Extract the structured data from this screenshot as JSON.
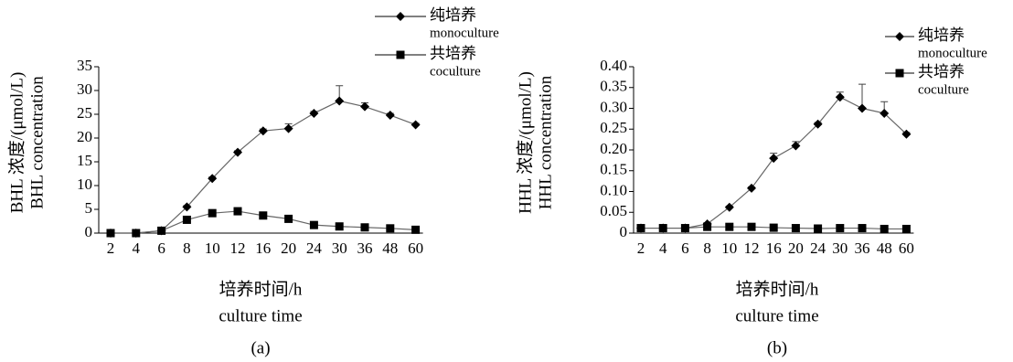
{
  "chart_data": [
    {
      "type": "line",
      "ylabel": [
        "BHL 浓度/(μmol/L)",
        "BHL concentration"
      ],
      "xlabel": [
        "培养时间/h",
        "culture time"
      ],
      "panel": "(a)",
      "categories": [
        "2",
        "4",
        "6",
        "8",
        "10",
        "12",
        "16",
        "20",
        "24",
        "30",
        "36",
        "48",
        "60"
      ],
      "ylim": [
        0,
        35
      ],
      "yticks": [
        0,
        5,
        10,
        15,
        20,
        25,
        30,
        35
      ],
      "series": [
        {
          "name": "纯培养",
          "name_en": "monoculture",
          "color": "#000000",
          "marker": "diamond",
          "values": [
            0,
            0,
            0.5,
            5.5,
            11.5,
            17,
            21.5,
            22,
            25.2,
            27.8,
            26.6,
            24.8,
            22.8
          ],
          "errors": [
            0,
            0,
            0,
            0.3,
            0.3,
            0.3,
            0.4,
            1,
            0.4,
            3.2,
            0.8,
            0.4,
            0.3
          ]
        },
        {
          "name": "共培养",
          "name_en": "coculture",
          "color": "#000000",
          "marker": "square",
          "values": [
            0,
            0,
            0.5,
            2.8,
            4.2,
            4.6,
            3.7,
            3,
            1.7,
            1.4,
            1.2,
            1,
            0.7
          ]
        }
      ]
    },
    {
      "type": "line",
      "ylabel": [
        "HHL 浓度/(μmol/L)",
        "HHL concentration"
      ],
      "xlabel": [
        "培养时间/h",
        "culture time"
      ],
      "panel": "(b)",
      "categories": [
        "2",
        "4",
        "6",
        "8",
        "10",
        "12",
        "16",
        "20",
        "24",
        "30",
        "36",
        "48",
        "60"
      ],
      "ylim": [
        0,
        0.4
      ],
      "yticks": [
        0,
        0.05,
        {
          "value": 0.1,
          "label": "0.10"
        },
        0.15,
        {
          "value": 0.2,
          "label": "0.20"
        },
        0.25,
        {
          "value": 0.3,
          "label": "0.30"
        },
        0.35,
        {
          "value": 0.4,
          "label": "0.40"
        }
      ],
      "series": [
        {
          "name": "纯培养",
          "name_en": "monoculture",
          "color": "#000000",
          "marker": "diamond",
          "values": [
            0.012,
            0.012,
            0.012,
            0.022,
            0.062,
            0.108,
            0.18,
            0.21,
            0.262,
            0.327,
            0.3,
            0.288,
            0.238
          ],
          "errors": [
            0,
            0,
            0,
            0.003,
            0.003,
            0.003,
            0.012,
            0.01,
            0.004,
            0.012,
            0.058,
            0.028,
            0.004
          ]
        },
        {
          "name": "共培养",
          "name_en": "coculture",
          "color": "#000000",
          "marker": "square",
          "values": [
            0.012,
            0.012,
            0.012,
            0.015,
            0.015,
            0.015,
            0.013,
            0.012,
            0.011,
            0.012,
            0.012,
            0.01,
            0.01
          ]
        }
      ]
    }
  ]
}
